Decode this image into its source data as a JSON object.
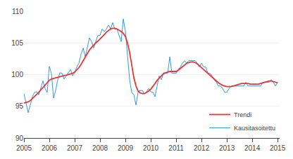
{
  "chart_data": {
    "type": "line",
    "x": [
      2005,
      2005.0833,
      2005.1667,
      2005.25,
      2005.3333,
      2005.4167,
      2005.5,
      2005.5833,
      2005.6667,
      2005.75,
      2005.8333,
      2005.9167,
      2006,
      2006.0833,
      2006.1667,
      2006.25,
      2006.3333,
      2006.4167,
      2006.5,
      2006.5833,
      2006.6667,
      2006.75,
      2006.8333,
      2006.9167,
      2007,
      2007.0833,
      2007.1667,
      2007.25,
      2007.3333,
      2007.4167,
      2007.5,
      2007.5833,
      2007.6667,
      2007.75,
      2007.8333,
      2007.9167,
      2008,
      2008.0833,
      2008.1667,
      2008.25,
      2008.3333,
      2008.4167,
      2008.5,
      2008.5833,
      2008.6667,
      2008.75,
      2008.8333,
      2008.9167,
      2009,
      2009.0833,
      2009.1667,
      2009.25,
      2009.3333,
      2009.4167,
      2009.5,
      2009.5833,
      2009.6667,
      2009.75,
      2009.8333,
      2009.9167,
      2010,
      2010.0833,
      2010.1667,
      2010.25,
      2010.3333,
      2010.4167,
      2010.5,
      2010.5833,
      2010.6667,
      2010.75,
      2010.8333,
      2010.9167,
      2011,
      2011.0833,
      2011.1667,
      2011.25,
      2011.3333,
      2011.4167,
      2011.5,
      2011.5833,
      2011.6667,
      2011.75,
      2011.8333,
      2011.9167,
      2012,
      2012.0833,
      2012.1667,
      2012.25,
      2012.3333,
      2012.4167,
      2012.5,
      2012.5833,
      2012.6667,
      2012.75,
      2012.8333,
      2012.9167,
      2013,
      2013.0833,
      2013.1667,
      2013.25,
      2013.3333,
      2013.4167,
      2013.5,
      2013.5833,
      2013.6667,
      2013.75,
      2013.8333,
      2013.9167,
      2014,
      2014.0833,
      2014.1667,
      2014.25,
      2014.3333,
      2014.4167,
      2014.5,
      2014.5833,
      2014.6667,
      2014.75,
      2014.8333,
      2014.9167,
      2015
    ],
    "series": [
      {
        "name": "Kausitasoitettu",
        "color": "#3399dd",
        "values": [
          97.0,
          95.5,
          94.0,
          95.2,
          96.5,
          97.2,
          97.3,
          96.8,
          98.0,
          99.0,
          97.8,
          97.2,
          101.3,
          100.2,
          96.3,
          97.5,
          99.2,
          100.3,
          100.2,
          99.3,
          99.8,
          100.3,
          100.8,
          99.8,
          100.3,
          101.2,
          101.8,
          103.2,
          104.2,
          102.8,
          104.2,
          105.8,
          105.2,
          104.2,
          105.2,
          106.2,
          106.2,
          107.2,
          106.8,
          107.2,
          107.8,
          107.2,
          108.2,
          107.2,
          107.2,
          106.2,
          105.2,
          108.8,
          106.8,
          103.0,
          99.2,
          97.2,
          96.8,
          95.2,
          97.2,
          97.5,
          97.5,
          97.0,
          97.3,
          97.8,
          97.3,
          97.2,
          96.5,
          98.2,
          99.8,
          99.2,
          100.3,
          100.2,
          100.2,
          102.8,
          100.2,
          100.2,
          100.2,
          100.8,
          101.2,
          101.8,
          102.2,
          101.8,
          102.2,
          102.2,
          102.2,
          102.2,
          101.8,
          101.2,
          101.8,
          101.2,
          101.2,
          100.2,
          100.2,
          99.8,
          99.2,
          98.8,
          98.2,
          98.2,
          97.8,
          97.2,
          97.2,
          97.8,
          98.2,
          98.2,
          98.2,
          98.2,
          98.2,
          98.2,
          98.2,
          98.8,
          98.2,
          98.2,
          98.2,
          98.2,
          98.2,
          98.2,
          98.2,
          98.8,
          98.8,
          98.8,
          98.8,
          99.2,
          98.8,
          98.2,
          98.8
        ]
      },
      {
        "name": "Trendi",
        "color": "#ee3333",
        "values": [
          95.5,
          95.6,
          95.7,
          95.9,
          96.2,
          96.5,
          96.8,
          97.2,
          97.6,
          98.0,
          98.4,
          98.8,
          99.1,
          99.3,
          99.4,
          99.5,
          99.6,
          99.7,
          99.8,
          99.85,
          99.9,
          100.0,
          100.1,
          100.2,
          100.4,
          100.7,
          101.1,
          101.6,
          102.2,
          102.8,
          103.4,
          103.9,
          104.3,
          104.7,
          105.0,
          105.3,
          105.6,
          105.9,
          106.3,
          106.7,
          107.0,
          107.2,
          107.3,
          107.3,
          107.2,
          107.0,
          106.8,
          106.5,
          106.0,
          105.0,
          103.5,
          101.5,
          99.5,
          98.2,
          97.4,
          97.1,
          97.0,
          97.0,
          97.2,
          97.4,
          97.7,
          98.1,
          98.6,
          99.1,
          99.5,
          99.8,
          100.1,
          100.3,
          100.4,
          100.5,
          100.5,
          100.5,
          100.5,
          100.7,
          101.0,
          101.3,
          101.6,
          101.8,
          101.9,
          102.0,
          102.0,
          101.9,
          101.7,
          101.4,
          101.0,
          100.7,
          100.4,
          100.1,
          99.8,
          99.5,
          99.2,
          98.9,
          98.7,
          98.5,
          98.3,
          98.2,
          98.1,
          98.1,
          98.1,
          98.2,
          98.3,
          98.4,
          98.5,
          98.6,
          98.6,
          98.6,
          98.6,
          98.5,
          98.5,
          98.5,
          98.5,
          98.5,
          98.6,
          98.7,
          98.8,
          98.9,
          99.0,
          99.0,
          98.9,
          98.8,
          98.7
        ]
      }
    ],
    "xlim": [
      2005,
      2015.08
    ],
    "xticks": [
      2005,
      2006,
      2007,
      2008,
      2009,
      2010,
      2011,
      2012,
      2013,
      2014,
      2015
    ],
    "ylim": [
      90,
      110
    ],
    "yticks": [
      90,
      95,
      100,
      105,
      110
    ],
    "grid": true,
    "legend": "lower right"
  }
}
